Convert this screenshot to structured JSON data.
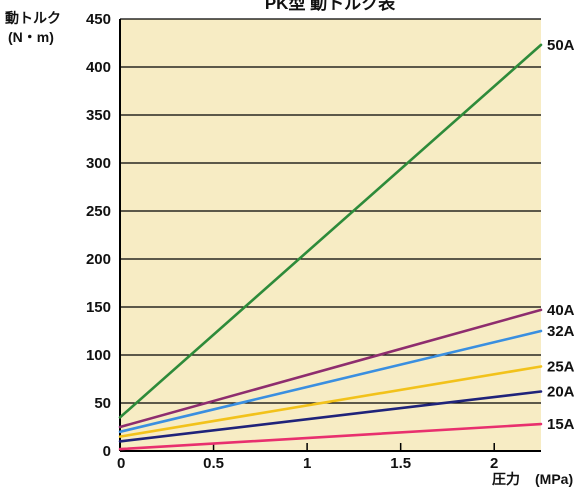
{
  "chart_data": {
    "type": "line",
    "title": "PK型 動トルク表",
    "ylabel": "動トルク",
    "ylabel_unit": "(N・m)",
    "xlabel": "圧力",
    "xlabel_unit": "(MPa)",
    "xlim": [
      0,
      2.25
    ],
    "ylim": [
      0,
      450
    ],
    "x_ticks": [
      {
        "value": 0,
        "label": "0"
      },
      {
        "value": 0.5,
        "label": "0.5"
      },
      {
        "value": 1,
        "label": "1"
      },
      {
        "value": 1.5,
        "label": "1.5"
      },
      {
        "value": 2,
        "label": "2"
      }
    ],
    "y_ticks": [
      {
        "value": 0,
        "label": "0"
      },
      {
        "value": 50,
        "label": "50"
      },
      {
        "value": 100,
        "label": "100"
      },
      {
        "value": 150,
        "label": "150"
      },
      {
        "value": 200,
        "label": "200"
      },
      {
        "value": 250,
        "label": "250"
      },
      {
        "value": 300,
        "label": "300"
      },
      {
        "value": 350,
        "label": "350"
      },
      {
        "value": 400,
        "label": "400"
      },
      {
        "value": 450,
        "label": "450"
      }
    ],
    "grid": "horizontal",
    "background_color": "#f7ecc4",
    "series": [
      {
        "name": "50A",
        "color": "#2e8b3a",
        "x": [
          0,
          2.25
        ],
        "y": [
          35,
          423
        ]
      },
      {
        "name": "40A",
        "color": "#8e2d6e",
        "x": [
          0,
          2.25
        ],
        "y": [
          25,
          147
        ]
      },
      {
        "name": "32A",
        "color": "#3a8fe0",
        "x": [
          0,
          2.25
        ],
        "y": [
          20,
          125
        ]
      },
      {
        "name": "25A",
        "color": "#f2c21b",
        "x": [
          0,
          2.25
        ],
        "y": [
          15,
          88
        ]
      },
      {
        "name": "20A",
        "color": "#1f237a",
        "x": [
          0,
          2.25
        ],
        "y": [
          10,
          62
        ]
      },
      {
        "name": "15A",
        "color": "#e8306e",
        "x": [
          0,
          2.25
        ],
        "y": [
          2,
          28
        ]
      }
    ]
  }
}
